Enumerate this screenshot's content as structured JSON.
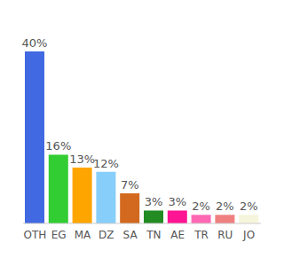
{
  "chart_data": {
    "type": "bar",
    "categories": [
      "OTH",
      "EG",
      "MA",
      "DZ",
      "SA",
      "TN",
      "AE",
      "TR",
      "RU",
      "JO"
    ],
    "values": [
      40,
      16,
      13,
      12,
      7,
      3,
      3,
      2,
      2,
      2
    ],
    "value_labels": [
      "40%",
      "16%",
      "13%",
      "12%",
      "7%",
      "3%",
      "3%",
      "2%",
      "2%",
      "2%"
    ],
    "colors": [
      "#4169e1",
      "#32cd32",
      "#ffa500",
      "#87cefa",
      "#d2691e",
      "#228b22",
      "#ff1493",
      "#ff69b4",
      "#f08080",
      "#f5f5dc"
    ],
    "data_labels": true,
    "tick_labels": "x",
    "grid": false
  }
}
